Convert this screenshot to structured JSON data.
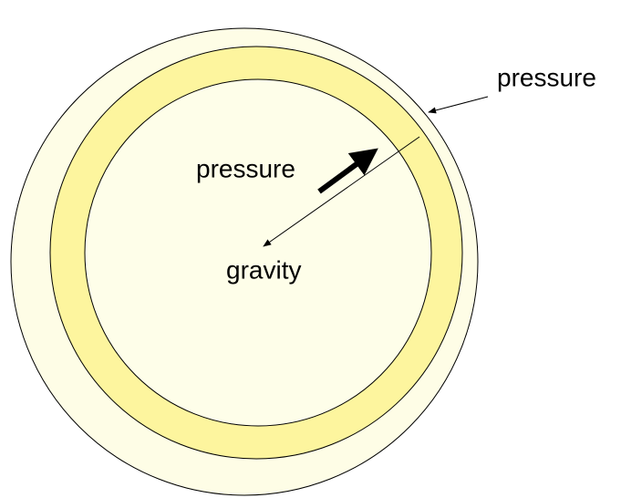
{
  "labels": {
    "outer_pressure": "pressure",
    "inner_pressure": "pressure",
    "gravity": "gravity"
  }
}
